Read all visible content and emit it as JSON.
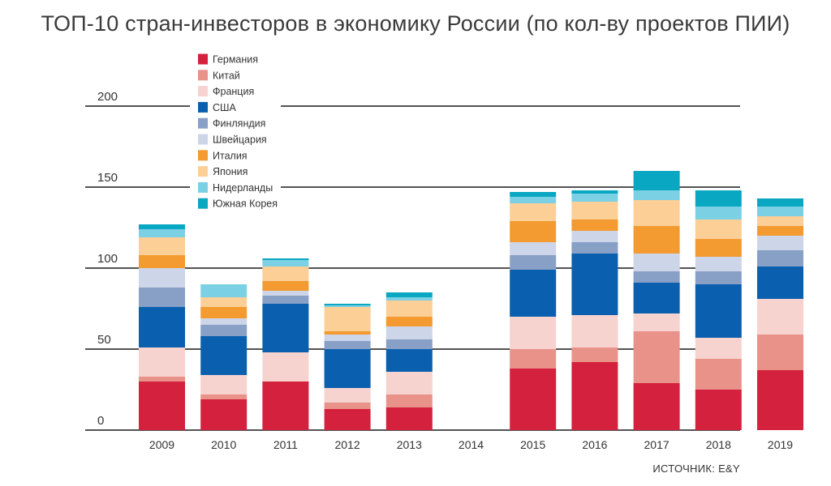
{
  "title": "ТОП-10 стран-инвесторов в экономику России (по кол-ву проектов ПИИ)",
  "source": "ИСТОЧНИК: E&Y",
  "colors": {
    "Германия": "#d4213d",
    "Китай": "#e8928a",
    "Франция": "#f6d3cf",
    "США": "#0a5fae",
    "Финляндия": "#889fc6",
    "Швейцария": "#cdd5e8",
    "Италия": "#f39a30",
    "Япония": "#fbcf96",
    "Нидерланды": "#7cd0e4",
    "Южная Корея": "#0aa7c3"
  },
  "chart_data": {
    "type": "bar",
    "stacked": true,
    "ylim": [
      0,
      200
    ],
    "yticks": [
      0,
      50,
      100,
      150,
      200
    ],
    "legend_position": "top-left",
    "categories": [
      "2009",
      "2010",
      "2011",
      "2012",
      "2013",
      "2014",
      "2015",
      "2016",
      "2017",
      "2018",
      "2019"
    ],
    "series": [
      {
        "name": "Германия",
        "values": [
          30,
          19,
          30,
          13,
          14,
          0,
          38,
          42,
          29,
          25,
          37
        ]
      },
      {
        "name": "Китай",
        "values": [
          3,
          3,
          0,
          4,
          8,
          0,
          12,
          9,
          32,
          19,
          22
        ]
      },
      {
        "name": "Франция",
        "values": [
          18,
          12,
          18,
          9,
          14,
          0,
          20,
          20,
          11,
          13,
          22
        ]
      },
      {
        "name": "США",
        "values": [
          25,
          24,
          30,
          24,
          14,
          0,
          29,
          38,
          19,
          33,
          20
        ]
      },
      {
        "name": "Финляндия",
        "values": [
          12,
          7,
          5,
          5,
          6,
          0,
          9,
          7,
          7,
          8,
          10
        ]
      },
      {
        "name": "Швейцария",
        "values": [
          12,
          4,
          3,
          4,
          8,
          0,
          8,
          7,
          11,
          9,
          9
        ]
      },
      {
        "name": "Италия",
        "values": [
          8,
          7,
          6,
          2,
          6,
          0,
          13,
          7,
          17,
          11,
          6
        ]
      },
      {
        "name": "Япония",
        "values": [
          11,
          6,
          9,
          15,
          10,
          0,
          11,
          11,
          16,
          12,
          6
        ]
      },
      {
        "name": "Нидерланды",
        "values": [
          5,
          8,
          4,
          1,
          2,
          0,
          4,
          5,
          6,
          8,
          6
        ]
      },
      {
        "name": "Южная Корея",
        "values": [
          3,
          0,
          1,
          1,
          3,
          0,
          3,
          2,
          12,
          10,
          5
        ]
      }
    ]
  }
}
